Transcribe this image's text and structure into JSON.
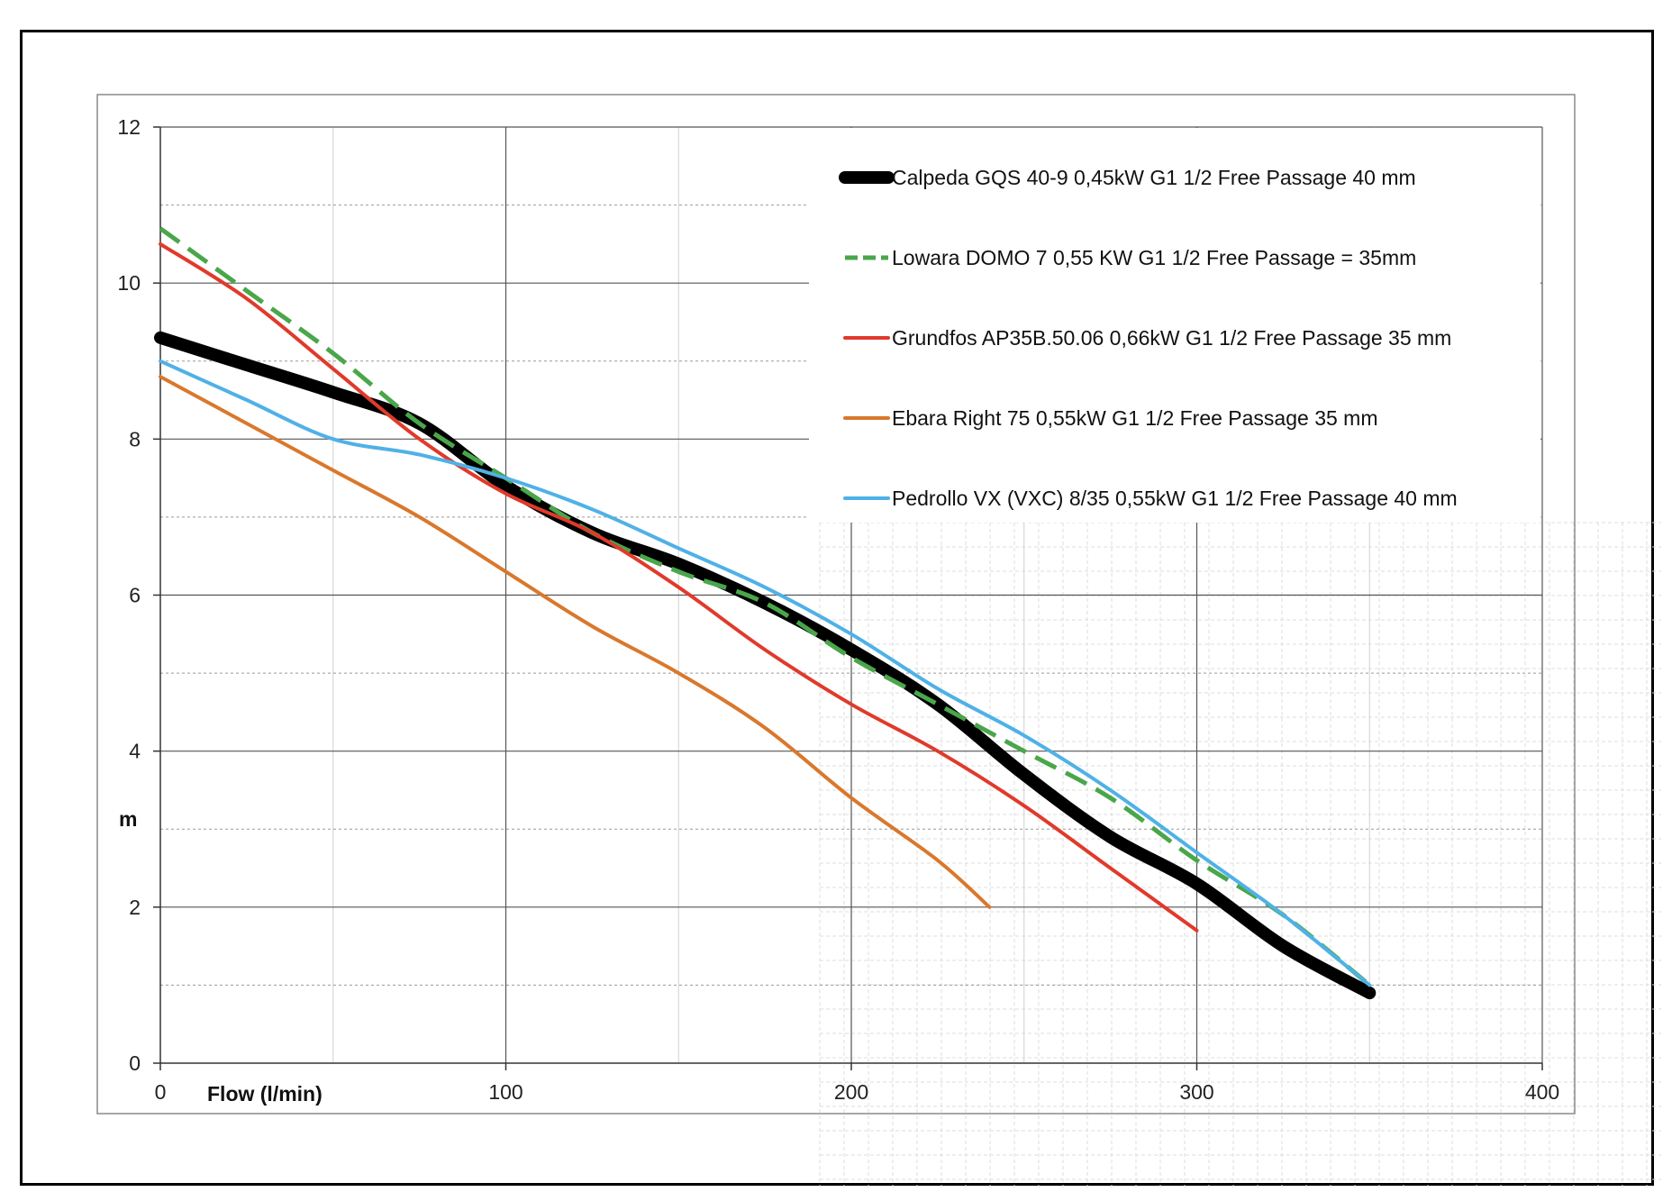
{
  "chart_data": {
    "type": "line",
    "title": "",
    "xlabel": "Flow (l/min)",
    "ylabel": "m",
    "xlim": [
      0,
      400
    ],
    "ylim": [
      0,
      12
    ],
    "xticks": [
      0,
      100,
      200,
      300,
      400
    ],
    "yticks": [
      0,
      2,
      4,
      6,
      8,
      10,
      12
    ],
    "grid": true,
    "legend": "top-right",
    "series": [
      {
        "name": "Calpeda GQS 40-9  0,45kW  G1 1/2 Free Passage 40 mm",
        "color": "#000000",
        "style": "solid-thick",
        "points": [
          [
            0,
            9.3
          ],
          [
            25,
            8.95
          ],
          [
            50,
            8.6
          ],
          [
            75,
            8.2
          ],
          [
            100,
            7.4
          ],
          [
            125,
            6.8
          ],
          [
            150,
            6.4
          ],
          [
            175,
            5.9
          ],
          [
            200,
            5.3
          ],
          [
            225,
            4.6
          ],
          [
            250,
            3.7
          ],
          [
            275,
            2.9
          ],
          [
            300,
            2.3
          ],
          [
            325,
            1.5
          ],
          [
            350,
            0.9
          ]
        ]
      },
      {
        "name": "Lowara DOMO 7  0,55 KW  G1 1/2 Free Passage = 35mm",
        "color": "#4aa64a",
        "style": "dashed",
        "points": [
          [
            0,
            10.7
          ],
          [
            25,
            9.9
          ],
          [
            50,
            9.1
          ],
          [
            75,
            8.2
          ],
          [
            100,
            7.5
          ],
          [
            125,
            6.8
          ],
          [
            150,
            6.3
          ],
          [
            175,
            5.9
          ],
          [
            200,
            5.2
          ],
          [
            225,
            4.6
          ],
          [
            250,
            4.0
          ],
          [
            275,
            3.4
          ],
          [
            300,
            2.6
          ],
          [
            325,
            1.9
          ],
          [
            350,
            1.0
          ]
        ]
      },
      {
        "name": "Grundfos AP35B.50.06  0,66kW  G1 1/2  Free Passage 35 mm",
        "color": "#e03a2b",
        "style": "solid",
        "points": [
          [
            0,
            10.5
          ],
          [
            25,
            9.8
          ],
          [
            50,
            8.9
          ],
          [
            75,
            8.0
          ],
          [
            100,
            7.3
          ],
          [
            125,
            6.8
          ],
          [
            150,
            6.1
          ],
          [
            175,
            5.3
          ],
          [
            200,
            4.6
          ],
          [
            225,
            4.0
          ],
          [
            250,
            3.3
          ],
          [
            275,
            2.5
          ],
          [
            300,
            1.7
          ]
        ]
      },
      {
        "name": "Ebara Right 75  0,55kW  G1 1/2 Free Passage 35 mm",
        "color": "#d9782d",
        "style": "solid",
        "points": [
          [
            0,
            8.8
          ],
          [
            25,
            8.2
          ],
          [
            50,
            7.6
          ],
          [
            75,
            7.0
          ],
          [
            100,
            6.3
          ],
          [
            125,
            5.6
          ],
          [
            150,
            5.0
          ],
          [
            175,
            4.3
          ],
          [
            200,
            3.4
          ],
          [
            225,
            2.6
          ],
          [
            240,
            2.0
          ]
        ]
      },
      {
        "name": "Pedrollo VX (VXC) 8/35  0,55kW  G1 1/2 Free Passage 40 mm",
        "color": "#4fb1e6",
        "style": "solid",
        "points": [
          [
            0,
            9.0
          ],
          [
            25,
            8.5
          ],
          [
            50,
            8.0
          ],
          [
            75,
            7.8
          ],
          [
            100,
            7.5
          ],
          [
            125,
            7.1
          ],
          [
            150,
            6.6
          ],
          [
            175,
            6.1
          ],
          [
            200,
            5.5
          ],
          [
            225,
            4.8
          ],
          [
            250,
            4.2
          ],
          [
            275,
            3.5
          ],
          [
            300,
            2.7
          ],
          [
            325,
            1.9
          ],
          [
            350,
            1.0
          ]
        ]
      }
    ]
  }
}
